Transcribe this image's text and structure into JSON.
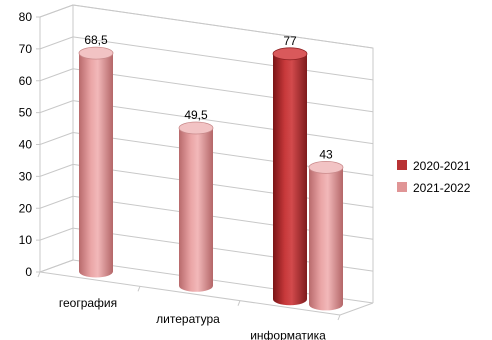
{
  "chart_data": {
    "type": "bar",
    "style": "3d-cylinder",
    "categories": [
      "география",
      "литература",
      "информатика"
    ],
    "series": [
      {
        "name": "2020-2021",
        "color": "#b83234",
        "values": [
          null,
          null,
          77
        ]
      },
      {
        "name": "2021-2022",
        "color": "#e09596",
        "values": [
          68.5,
          49.5,
          43
        ]
      }
    ],
    "data_labels": [
      {
        "series": 1,
        "index": 0,
        "text": "68,5"
      },
      {
        "series": 1,
        "index": 1,
        "text": "49,5"
      },
      {
        "series": 0,
        "index": 2,
        "text": "77"
      },
      {
        "series": 1,
        "index": 2,
        "text": "43"
      }
    ],
    "y_ticks": [
      "0",
      "10",
      "20",
      "30",
      "40",
      "50",
      "60",
      "70",
      "80"
    ],
    "ylim": [
      0,
      80
    ],
    "grid": true,
    "legend": "right",
    "title": "",
    "xlabel": "",
    "ylabel": ""
  }
}
